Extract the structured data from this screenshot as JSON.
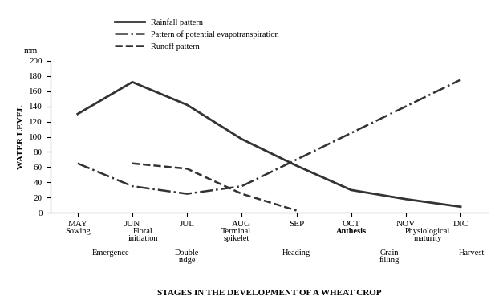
{
  "chart_data": {
    "type": "line",
    "y_unit": "mm",
    "y_label": "WATER LEVEL",
    "x_label": "STAGES IN THE DEVELOPMENT OF A WHEAT CROP",
    "categories": [
      "MAY",
      "JUN",
      "JUL",
      "AUG",
      "SEP",
      "OCT",
      "NOV",
      "DIC"
    ],
    "series": [
      {
        "name": "Rainfall pattern",
        "color": "#333333",
        "line_style": "solid",
        "values": [
          130,
          172,
          142,
          97,
          62,
          30,
          18,
          8
        ]
      },
      {
        "name": "Pattern of potential evapotranspiration",
        "color": "#333333",
        "line_style": "dashdot",
        "values": [
          65,
          35,
          25,
          35,
          70,
          105,
          140,
          175
        ]
      },
      {
        "name": "Runoff pattern",
        "color": "#333333",
        "line_style": "dashed",
        "values": [
          null,
          65,
          58,
          25,
          3,
          null,
          null,
          null
        ]
      }
    ],
    "stages": [
      "Sowing",
      "Emergence",
      "Floral\ninitiation",
      "Double\nridge",
      "Terminal\nspikelet",
      "Heading",
      "Anthesis",
      "Grain\nfilling",
      "Physiological\nmaturity",
      "Harvest"
    ],
    "ylim": [
      0,
      200
    ],
    "yticks": [
      0,
      20,
      40,
      60,
      80,
      100,
      120,
      140,
      160,
      180,
      200
    ],
    "legend": "upper left",
    "grid": false
  }
}
